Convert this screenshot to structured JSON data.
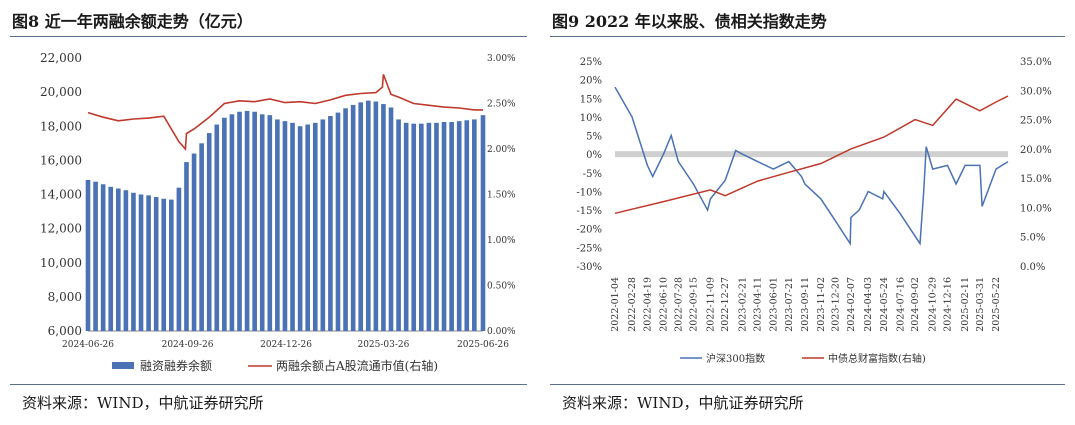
{
  "charts": {
    "left": {
      "title": "图8  近一年两融余额走势（亿元）",
      "source": "资料来源：WIND，中航证券研究所"
    },
    "right": {
      "title": "图9  2022 年以来股、债相关指数走势",
      "source": "资料来源：WIND，中航证券研究所"
    }
  },
  "chart_data": [
    {
      "type": "bar",
      "title": "图8  近一年两融余额走势（亿元）",
      "x_tick_labels": [
        "2024-06-26",
        "2024-09-26",
        "2024-12-26",
        "2025-03-26",
        "2025-06-26"
      ],
      "y_left_tick_labels": [
        "6,000",
        "8,000",
        "10,000",
        "12,000",
        "14,000",
        "16,000",
        "18,000",
        "20,000",
        "22,000"
      ],
      "y_right_tick_labels": [
        "0.00%",
        "0.50%",
        "1.00%",
        "1.50%",
        "2.00%",
        "2.50%",
        "3.00%"
      ],
      "ylim_left": [
        6000,
        22000
      ],
      "ylim_right": [
        0,
        3.0
      ],
      "legend_position": "bottom",
      "colors": {
        "bar": "#4a72b5",
        "line": "#c0392b"
      },
      "series": [
        {
          "name": "融资融券余额",
          "axis": "left",
          "type": "bar",
          "x": [
            "2024-06-26",
            "2024-07-03",
            "2024-07-10",
            "2024-07-17",
            "2024-07-24",
            "2024-07-31",
            "2024-08-07",
            "2024-08-14",
            "2024-08-21",
            "2024-08-28",
            "2024-09-04",
            "2024-09-11",
            "2024-09-18",
            "2024-09-25",
            "2024-10-02",
            "2024-10-09",
            "2024-10-16",
            "2024-10-23",
            "2024-10-30",
            "2024-11-06",
            "2024-11-13",
            "2024-11-20",
            "2024-11-27",
            "2024-12-04",
            "2024-12-11",
            "2024-12-18",
            "2024-12-25",
            "2025-01-01",
            "2025-01-08",
            "2025-01-15",
            "2025-01-22",
            "2025-01-29",
            "2025-02-05",
            "2025-02-12",
            "2025-02-19",
            "2025-02-26",
            "2025-03-05",
            "2025-03-12",
            "2025-03-19",
            "2025-03-26",
            "2025-04-02",
            "2025-04-09",
            "2025-04-16",
            "2025-04-23",
            "2025-04-30",
            "2025-05-07",
            "2025-05-14",
            "2025-05-21",
            "2025-05-28",
            "2025-06-04",
            "2025-06-11",
            "2025-06-18",
            "2025-06-26"
          ],
          "values": [
            14850,
            14750,
            14600,
            14450,
            14350,
            14250,
            14100,
            14000,
            13950,
            13850,
            13750,
            13700,
            14400,
            15900,
            16400,
            17000,
            17600,
            18100,
            18500,
            18700,
            18850,
            18900,
            18850,
            18700,
            18650,
            18400,
            18300,
            18200,
            18000,
            18100,
            18200,
            18400,
            18600,
            18800,
            19050,
            19250,
            19400,
            19500,
            19450,
            19300,
            19100,
            18400,
            18200,
            18150,
            18150,
            18200,
            18200,
            18250,
            18250,
            18300,
            18350,
            18400,
            18650
          ]
        },
        {
          "name": "两融余额占A股流通市值(右轴)",
          "axis": "right",
          "type": "line",
          "x": [
            "2024-06-26",
            "2024-07-10",
            "2024-07-24",
            "2024-08-07",
            "2024-08-21",
            "2024-09-04",
            "2024-09-18",
            "2024-09-24",
            "2024-09-25",
            "2024-10-02",
            "2024-10-16",
            "2024-10-30",
            "2024-11-13",
            "2024-11-27",
            "2024-12-11",
            "2024-12-25",
            "2025-01-08",
            "2025-01-22",
            "2025-02-05",
            "2025-02-19",
            "2025-03-05",
            "2025-03-19",
            "2025-03-25",
            "2025-03-26",
            "2025-04-02",
            "2025-04-09",
            "2025-04-23",
            "2025-05-07",
            "2025-05-21",
            "2025-06-04",
            "2025-06-18",
            "2025-06-26"
          ],
          "values": [
            2.4,
            2.35,
            2.31,
            2.33,
            2.34,
            2.36,
            2.08,
            2.0,
            2.17,
            2.22,
            2.35,
            2.5,
            2.53,
            2.52,
            2.55,
            2.51,
            2.52,
            2.5,
            2.54,
            2.59,
            2.61,
            2.62,
            2.68,
            2.82,
            2.6,
            2.57,
            2.5,
            2.48,
            2.46,
            2.45,
            2.43,
            2.43
          ]
        }
      ]
    },
    {
      "type": "line",
      "title": "图9  2022 年以来股、债相关指数走势",
      "x_tick_labels": [
        "2022-01-04",
        "2022-02-28",
        "2022-04-19",
        "2022-06-10",
        "2022-07-28",
        "2022-09-15",
        "2022-11-09",
        "2022-12-27",
        "2023-02-21",
        "2023-04-11",
        "2023-06-01",
        "2023-07-21",
        "2023-09-11",
        "2023-11-02",
        "2023-12-20",
        "2024-02-07",
        "2024-04-03",
        "2024-05-24",
        "2024-07-16",
        "2024-09-02",
        "2024-10-29",
        "2024-12-16",
        "2025-02-11",
        "2025-03-31",
        "2025-05-22"
      ],
      "y_left_tick_labels": [
        "-30%",
        "-25%",
        "-20%",
        "-15%",
        "-10%",
        "-5%",
        "0%",
        "5%",
        "10%",
        "15%",
        "20%",
        "25%"
      ],
      "y_right_tick_labels": [
        "0.0%",
        "5.0%",
        "10.0%",
        "15.0%",
        "20.0%",
        "25.0%",
        "30.0%",
        "35.0%"
      ],
      "ylim_left": [
        -30,
        25
      ],
      "ylim_right": [
        0,
        35
      ],
      "legend_position": "bottom",
      "colors": {
        "hs300": "#4a72b5",
        "bond": "#c0392b",
        "zero_band": "#d0d0d0"
      },
      "series": [
        {
          "name": "沪深300指数",
          "axis": "left",
          "x": [
            "2022-01-04",
            "2022-02-28",
            "2022-04-19",
            "2022-05-06",
            "2022-06-10",
            "2022-07-05",
            "2022-07-28",
            "2022-09-15",
            "2022-10-31",
            "2022-11-09",
            "2022-12-27",
            "2023-01-30",
            "2023-02-21",
            "2023-04-11",
            "2023-06-01",
            "2023-07-21",
            "2023-08-31",
            "2023-09-11",
            "2023-11-02",
            "2023-12-20",
            "2024-02-05",
            "2024-02-07",
            "2024-03-05",
            "2024-04-03",
            "2024-05-20",
            "2024-05-24",
            "2024-07-16",
            "2024-09-18",
            "2024-09-30",
            "2024-10-08",
            "2024-10-29",
            "2024-12-16",
            "2025-01-13",
            "2025-02-11",
            "2025-03-31",
            "2025-04-07",
            "2025-05-22",
            "2025-06-30"
          ],
          "values": [
            18,
            10,
            -3,
            -6,
            0,
            5,
            -2,
            -8,
            -15,
            -12,
            -7,
            1,
            0,
            -2,
            -4,
            -2,
            -6,
            -8,
            -12,
            -18,
            -24,
            -17,
            -15,
            -10,
            -12,
            -10,
            -16,
            -24,
            -10,
            2,
            -4,
            -3,
            -8,
            -3,
            -3,
            -14,
            -4,
            -2
          ]
        },
        {
          "name": "中债总财富指数(右轴)",
          "axis": "right",
          "x": [
            "2022-01-04",
            "2022-06-10",
            "2022-11-09",
            "2022-12-27",
            "2023-04-11",
            "2023-07-21",
            "2023-11-02",
            "2024-02-07",
            "2024-05-24",
            "2024-09-02",
            "2024-10-29",
            "2025-01-13",
            "2025-03-31",
            "2025-05-22",
            "2025-06-30"
          ],
          "values": [
            9,
            11,
            13,
            12,
            14.5,
            16,
            17.5,
            20,
            22,
            25,
            24,
            28.5,
            26.5,
            28,
            29
          ]
        }
      ]
    }
  ]
}
